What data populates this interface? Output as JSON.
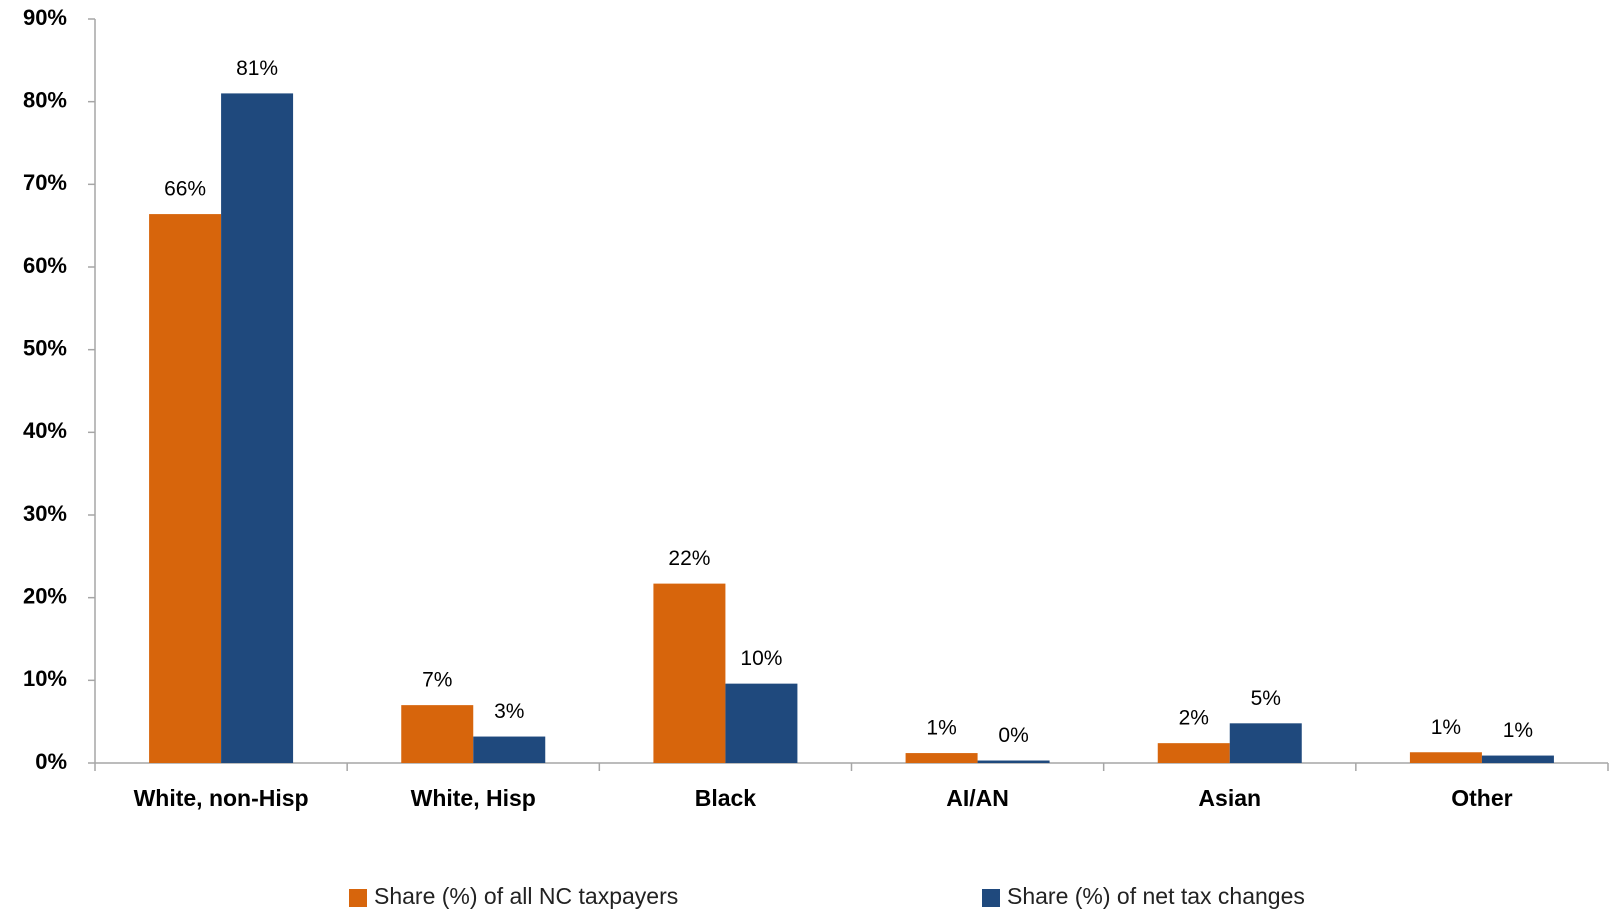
{
  "chart_data": {
    "type": "bar",
    "categories": [
      "White, non-Hisp",
      "White, Hisp",
      "Black",
      "AI/AN",
      "Asian",
      "Other"
    ],
    "series": [
      {
        "name": "Share (%) of all NC taxpayers",
        "color": "#d7650c",
        "values": [
          66.4,
          7.0,
          21.7,
          1.2,
          2.4,
          1.3
        ],
        "value_labels": [
          "66%",
          "7%",
          "22%",
          "1%",
          "2%",
          "1%"
        ]
      },
      {
        "name": "Share (%) of net tax changes",
        "color": "#1f497d",
        "values": [
          81.0,
          3.2,
          9.6,
          0.3,
          4.8,
          0.9
        ],
        "value_labels": [
          "81%",
          "3%",
          "10%",
          "0%",
          "5%",
          "1%"
        ]
      }
    ],
    "ylim": [
      0,
      90
    ],
    "yticks": [
      {
        "value": 0,
        "label": "0%"
      },
      {
        "value": 10,
        "label": "10%"
      },
      {
        "value": 20,
        "label": "20%"
      },
      {
        "value": 30,
        "label": "30%"
      },
      {
        "value": 40,
        "label": "40%"
      },
      {
        "value": 50,
        "label": "50%"
      },
      {
        "value": 60,
        "label": "60%"
      },
      {
        "value": 70,
        "label": "70%"
      },
      {
        "value": 80,
        "label": "80%"
      },
      {
        "value": 90,
        "label": "90%"
      }
    ],
    "legend": "bottom"
  }
}
